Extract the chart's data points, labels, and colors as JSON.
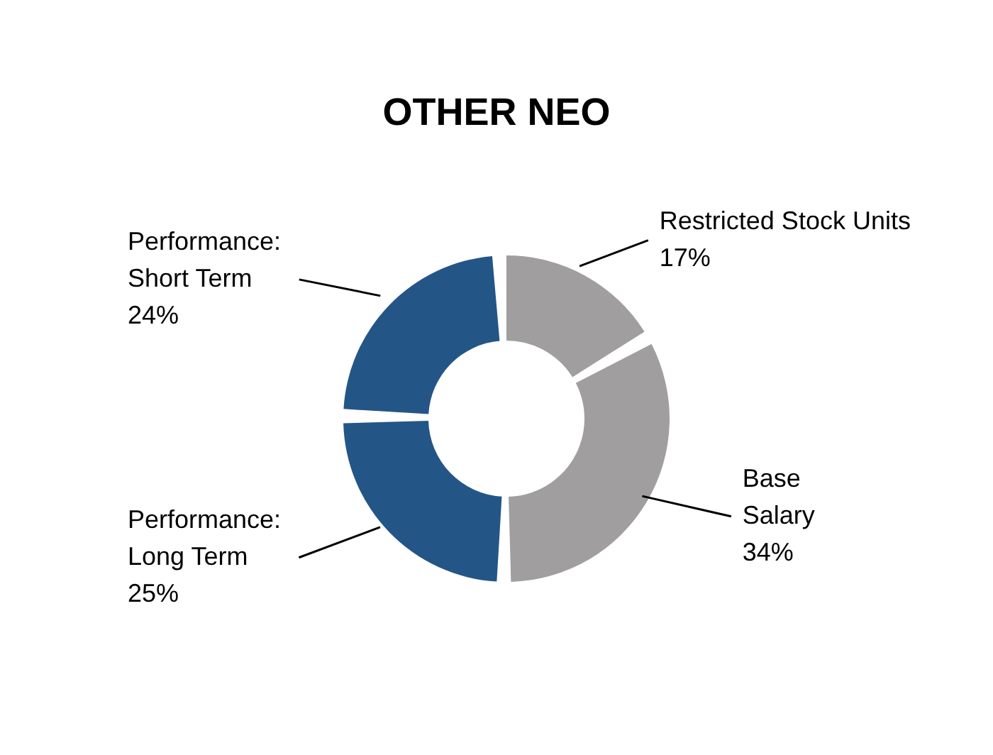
{
  "chart_data": {
    "type": "donut",
    "title": "OTHER NEO",
    "categories": [
      "Restricted Stock Units",
      "Base\nSalary",
      "Performance:\nLong Term",
      "Performance:\nShort Term"
    ],
    "values": [
      17,
      34,
      25,
      24
    ],
    "value_labels": [
      "17%",
      "34%",
      "25%",
      "24%"
    ],
    "colors": [
      "#a19e9f",
      "#a19e9f",
      "#245587",
      "#245587"
    ],
    "legend": false
  }
}
